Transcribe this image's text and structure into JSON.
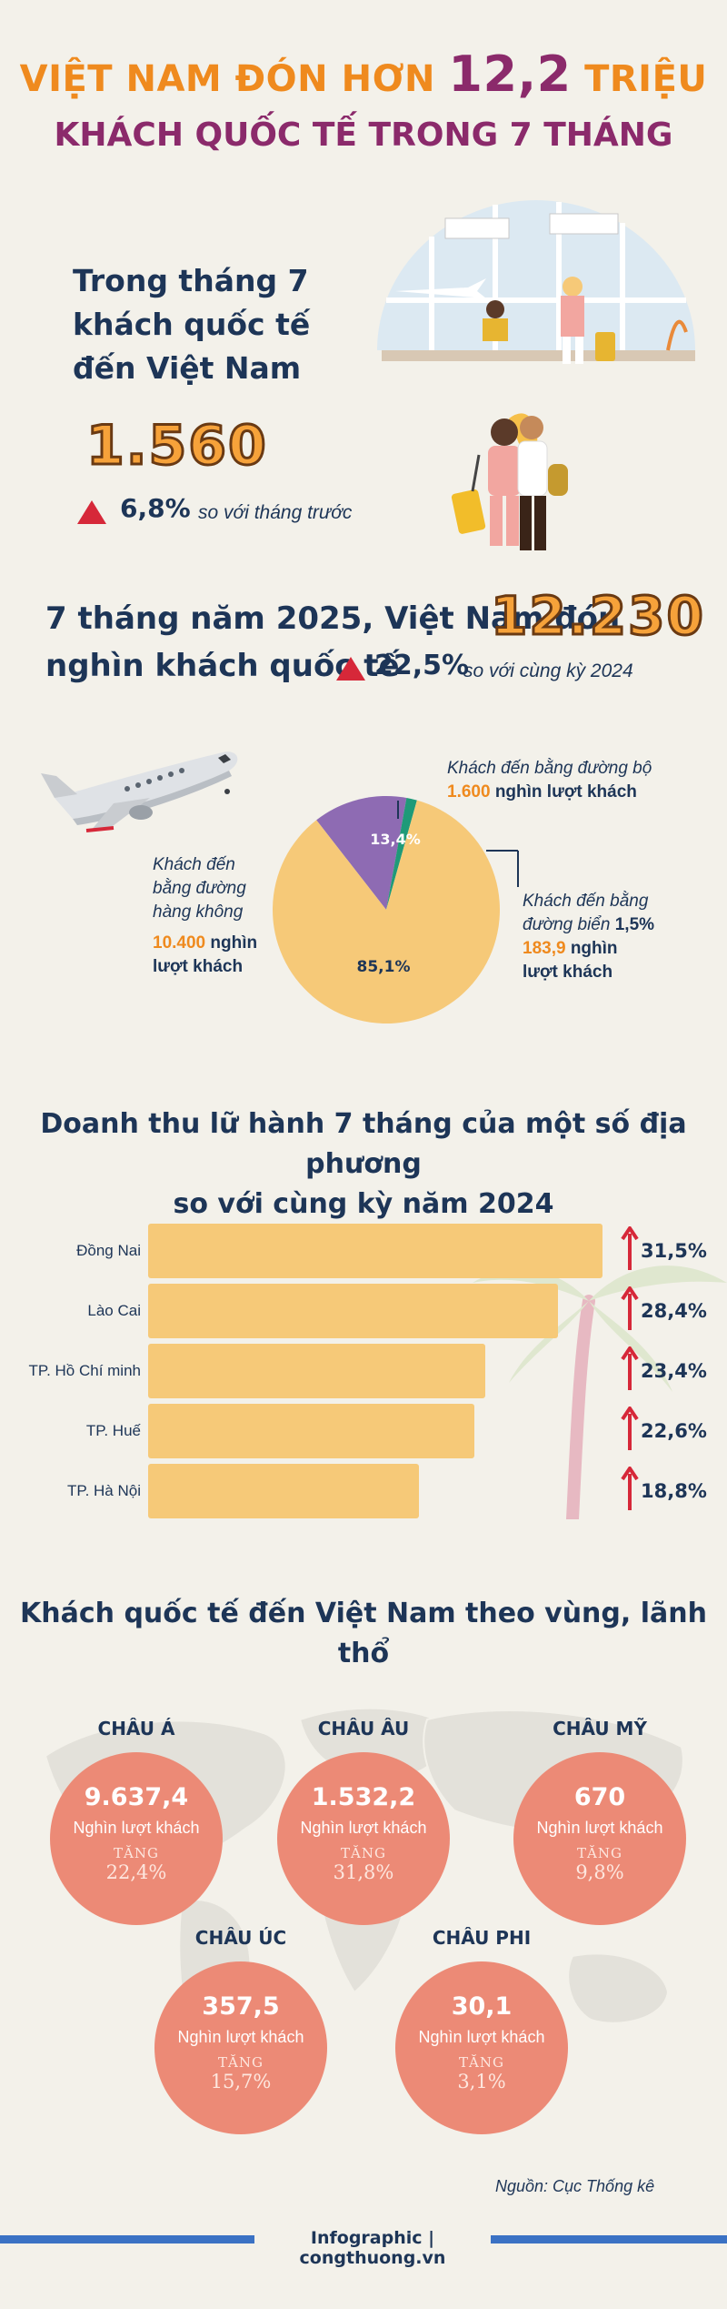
{
  "header": {
    "line1_prefix": "VIỆT NAM ĐÓN HƠN",
    "line1_number": "12,2",
    "line1_suffix": "TRIỆU",
    "line2": "KHÁCH QUỐC TẾ TRONG 7 THÁNG"
  },
  "july": {
    "heading_line1": "Trong tháng 7",
    "heading_line2": "khách quốc tế",
    "heading_line3": "đến Việt Nam",
    "value": "1.560",
    "change": "6,8%",
    "compare": "so với tháng trước"
  },
  "ytd": {
    "text1": "7 tháng năm 2025, Việt Nam đón",
    "value": "12.230",
    "text2": "nghìn khách quốc tế",
    "change": "22,5%",
    "compare": "so với cùng kỳ 2024"
  },
  "chart_data": {
    "type": "pie",
    "slices": [
      {
        "name": "Khách đến bằng đường hàng không",
        "value": 85.1,
        "label": "85,1%",
        "amount": "10.400",
        "unit": "nghìn lượt khách",
        "color": "#f6c978"
      },
      {
        "name": "Khách đến bằng đường bộ",
        "value": 13.4,
        "label": "13,4%",
        "amount": "1.600",
        "unit": "nghìn lượt khách",
        "color": "#8e6bb3"
      },
      {
        "name": "Khách đến bằng đường biển",
        "value": 1.5,
        "label": "1,5%",
        "amount": "183,9",
        "unit": "nghìn lượt khách",
        "color": "#1f9a78"
      }
    ]
  },
  "pie_labels": {
    "air_line1": "Khách đến",
    "air_line2": "bằng đường",
    "air_line3": "hàng không",
    "air_amount": "10.400",
    "air_unit1": "nghìn",
    "air_unit2": "lượt khách",
    "road_line1": "Khách đến bằng đường bộ",
    "road_amount": "1.600",
    "road_unit": "nghìn lượt khách",
    "sea_line1": "Khách đến bằng",
    "sea_line2": "đường biển",
    "sea_pct": "1,5%",
    "sea_amount": "183,9",
    "sea_unit1": "nghìn",
    "sea_unit2": "lượt khách",
    "air_pct": "85,1%",
    "road_pct": "13,4%"
  },
  "revenue": {
    "title_line1": "Doanh thu lữ hành 7 tháng của một số địa phương",
    "title_line2": "so với cùng kỳ năm 2024",
    "items": [
      {
        "name": "Đồng Nai",
        "value": 31.5,
        "label": "31,5%"
      },
      {
        "name": "Lào Cai",
        "value": 28.4,
        "label": "28,4%"
      },
      {
        "name": "TP. Hồ Chí minh",
        "value": 23.4,
        "label": "23,4%"
      },
      {
        "name": "TP. Huế",
        "value": 22.6,
        "label": "22,6%"
      },
      {
        "name": "TP. Hà Nội",
        "value": 18.8,
        "label": "18,8%"
      }
    ]
  },
  "regions": {
    "title": "Khách quốc tế đến Việt Nam theo vùng, lãnh thổ",
    "unit": "Nghìn lượt khách",
    "increase_label": "TĂNG",
    "items": [
      {
        "name": "CHÂU Á",
        "value": "9.637,4",
        "growth": "22,4%"
      },
      {
        "name": "CHÂU ÂU",
        "value": "1.532,2",
        "growth": "31,8%"
      },
      {
        "name": "CHÂU MỸ",
        "value": "670",
        "growth": "9,8%"
      },
      {
        "name": "CHÂU ÚC",
        "value": "357,5",
        "growth": "15,7%"
      },
      {
        "name": "CHÂU PHI",
        "value": "30,1",
        "growth": "3,1%"
      }
    ]
  },
  "footer": {
    "source": "Nguồn: Cục Thống kê",
    "brand": "Infographic | congthuong.vn"
  },
  "colors": {
    "orange": "#ef8a1e",
    "purple": "#8b2a6b",
    "navy": "#1d3557",
    "bar": "#f6c978",
    "circle": "#ec8a76",
    "arrow": "#d62839",
    "footer_line": "#3b72c4"
  }
}
